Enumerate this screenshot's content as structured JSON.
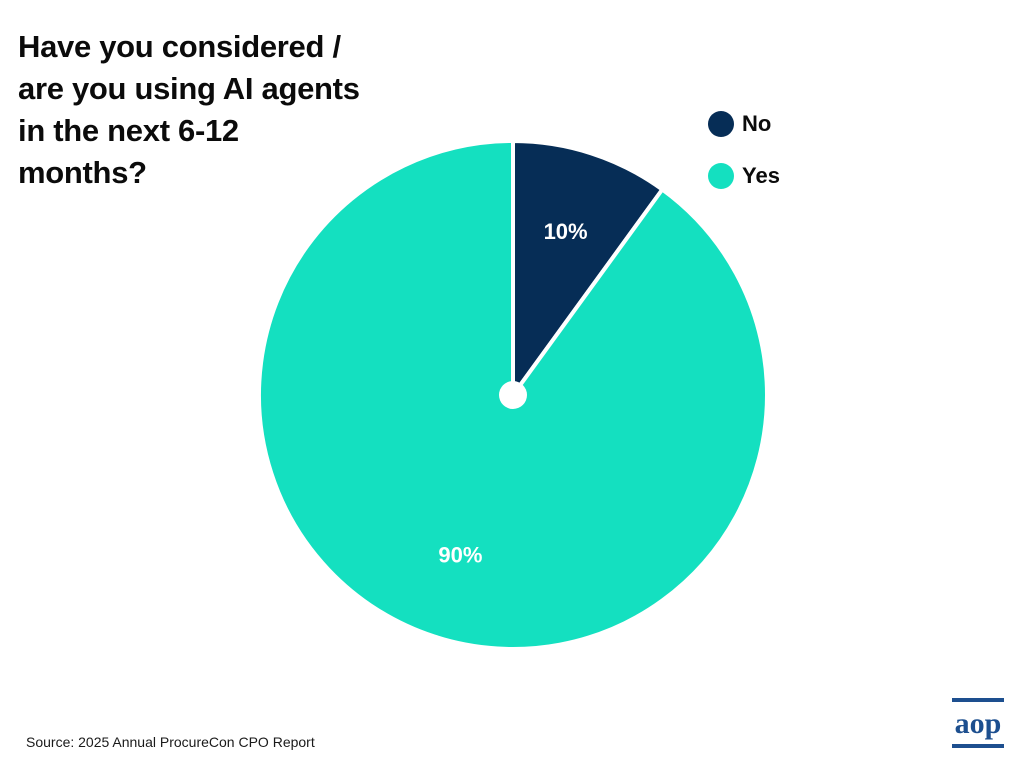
{
  "chart_data": {
    "type": "pie",
    "title": "Have you considered / are you using AI agents in the next 6-12 months?",
    "slices": [
      {
        "label": "No",
        "value": 10,
        "display": "10%",
        "color": "#062d56"
      },
      {
        "label": "Yes",
        "value": 90,
        "display": "90%",
        "color": "#14e0c0"
      }
    ],
    "start_angle": "12 o'clock, clockwise",
    "legend_position": "top-right"
  },
  "source_text": "Source:  2025 Annual ProcureCon CPO Report",
  "logo": {
    "text": "aop",
    "color": "#1d4f8f"
  }
}
